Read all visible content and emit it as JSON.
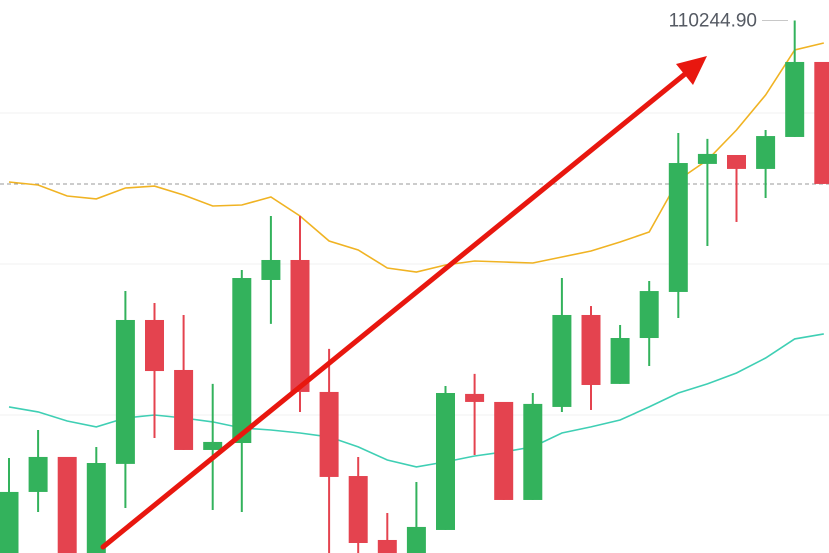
{
  "chart_data": {
    "type": "candlestick",
    "ylim": [
      106730,
      110380
    ],
    "up_color": "#33b25c",
    "down_color": "#e4434f",
    "ohlc": [
      [
        106730,
        107357,
        106700,
        107133
      ],
      [
        107133,
        107542,
        107001,
        107364
      ],
      [
        107364,
        107364,
        106700,
        106730
      ],
      [
        106730,
        107430,
        106700,
        107324
      ],
      [
        107318,
        108459,
        107027,
        108268
      ],
      [
        108268,
        108380,
        107489,
        107931
      ],
      [
        107938,
        108301,
        107410,
        107410
      ],
      [
        107410,
        107846,
        107014,
        107463
      ],
      [
        107456,
        108598,
        107001,
        108545
      ],
      [
        108532,
        108954,
        108242,
        108664
      ],
      [
        108664,
        108954,
        107661,
        107793
      ],
      [
        107793,
        108077,
        106700,
        107232
      ],
      [
        107238,
        107364,
        106700,
        106796
      ],
      [
        106816,
        106994,
        106700,
        106730
      ],
      [
        106730,
        107199,
        106700,
        106902
      ],
      [
        106882,
        107832,
        106882,
        107786
      ],
      [
        107780,
        107912,
        107377,
        107727
      ],
      [
        107727,
        107727,
        107080,
        107080
      ],
      [
        107080,
        107786,
        107080,
        107714
      ],
      [
        107694,
        108545,
        107661,
        108301
      ],
      [
        108301,
        108360,
        107674,
        107839
      ],
      [
        107846,
        108235,
        107846,
        108149
      ],
      [
        108149,
        108525,
        107964,
        108459
      ],
      [
        108453,
        109502,
        108281,
        109304
      ],
      [
        109298,
        109463,
        108756,
        109364
      ],
      [
        109357,
        109357,
        108915,
        109265
      ],
      [
        109265,
        109522,
        109073,
        109482
      ],
      [
        109476,
        110244.9,
        109476,
        109971
      ],
      [
        109971,
        109971,
        109166,
        109166
      ]
    ],
    "series": [
      {
        "color": "#f0b323",
        "values": [
          109179,
          109159,
          109086,
          109067,
          109139,
          109152,
          109093,
          109020,
          109027,
          109080,
          108954,
          108789,
          108730,
          108611,
          108585,
          108631,
          108657,
          108651,
          108644,
          108684,
          108723,
          108783,
          108849,
          109192,
          109324,
          109522,
          109753,
          110050,
          110096
        ]
      },
      {
        "color": "#3fcfb4",
        "values": [
          107694,
          107661,
          107601,
          107562,
          107621,
          107641,
          107621,
          107595,
          107555,
          107542,
          107522,
          107496,
          107430,
          107344,
          107298,
          107331,
          107370,
          107397,
          107430,
          107522,
          107562,
          107608,
          107694,
          107786,
          107846,
          107918,
          108017,
          108143,
          108176
        ]
      }
    ],
    "annotation": {
      "value": 110244.9,
      "label": "110244.90"
    }
  }
}
